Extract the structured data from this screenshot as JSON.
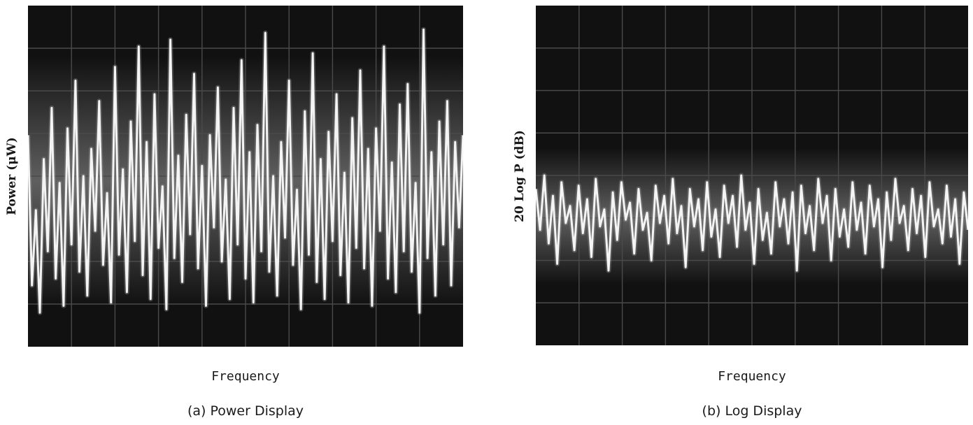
{
  "chart_data": [
    {
      "type": "line",
      "panel": "a",
      "caption": "(a) Power Display",
      "xlabel": "Frequency",
      "ylabel": "Power (μW)",
      "grid": true,
      "grid_divisions": {
        "x": 10,
        "y": 8
      },
      "trace_color": "#f4f4f4",
      "background_color": "#111111",
      "series": [
        {
          "values": [
            0.62,
            0.18,
            0.4,
            0.1,
            0.55,
            0.28,
            0.7,
            0.2,
            0.48,
            0.12,
            0.64,
            0.3,
            0.78,
            0.22,
            0.5,
            0.15,
            0.58,
            0.34,
            0.72,
            0.24,
            0.45,
            0.13,
            0.82,
            0.27,
            0.52,
            0.16,
            0.66,
            0.31,
            0.88,
            0.21,
            0.6,
            0.14,
            0.74,
            0.29,
            0.47,
            0.11,
            0.9,
            0.26,
            0.56,
            0.19,
            0.68,
            0.33,
            0.8,
            0.23,
            0.53,
            0.12,
            0.62,
            0.35,
            0.76,
            0.25,
            0.49,
            0.14,
            0.7,
            0.3,
            0.84,
            0.2,
            0.57,
            0.13,
            0.65,
            0.28,
            0.92,
            0.22,
            0.5,
            0.15,
            0.6,
            0.32,
            0.78,
            0.24,
            0.46,
            0.11,
            0.69,
            0.27,
            0.86,
            0.19,
            0.55,
            0.14,
            0.63,
            0.31,
            0.74,
            0.21,
            0.51,
            0.13,
            0.67,
            0.29,
            0.81,
            0.23,
            0.58,
            0.12,
            0.64,
            0.34,
            0.88,
            0.2,
            0.54,
            0.16,
            0.71,
            0.28,
            0.77,
            0.22,
            0.48,
            0.1,
            0.93,
            0.26,
            0.57,
            0.15,
            0.66,
            0.3,
            0.72,
            0.18,
            0.6,
            0.35,
            0.62
          ]
        }
      ]
    },
    {
      "type": "line",
      "panel": "b",
      "caption": "(b) Log Display",
      "xlabel": "Frequency",
      "ylabel": "20 Log P (dB)",
      "grid": true,
      "grid_divisions": {
        "x": 10,
        "y": 8
      },
      "trace_color": "#f4f4f4",
      "background_color": "#111111",
      "series": [
        {
          "values": [
            0.46,
            0.34,
            0.5,
            0.3,
            0.44,
            0.24,
            0.48,
            0.36,
            0.41,
            0.28,
            0.47,
            0.33,
            0.43,
            0.26,
            0.49,
            0.35,
            0.4,
            0.22,
            0.45,
            0.31,
            0.48,
            0.37,
            0.42,
            0.27,
            0.46,
            0.34,
            0.39,
            0.25,
            0.47,
            0.36,
            0.44,
            0.3,
            0.49,
            0.33,
            0.41,
            0.23,
            0.46,
            0.35,
            0.43,
            0.28,
            0.48,
            0.32,
            0.4,
            0.26,
            0.47,
            0.36,
            0.44,
            0.29,
            0.5,
            0.34,
            0.42,
            0.24,
            0.46,
            0.31,
            0.39,
            0.27,
            0.48,
            0.35,
            0.43,
            0.3,
            0.45,
            0.22,
            0.47,
            0.33,
            0.41,
            0.28,
            0.49,
            0.36,
            0.44,
            0.25,
            0.46,
            0.32,
            0.4,
            0.29,
            0.48,
            0.34,
            0.42,
            0.27,
            0.47,
            0.35,
            0.43,
            0.23,
            0.45,
            0.31,
            0.49,
            0.36,
            0.41,
            0.28,
            0.46,
            0.33,
            0.44,
            0.26,
            0.48,
            0.35,
            0.4,
            0.3,
            0.47,
            0.32,
            0.43,
            0.24,
            0.45,
            0.34
          ]
        }
      ]
    }
  ]
}
